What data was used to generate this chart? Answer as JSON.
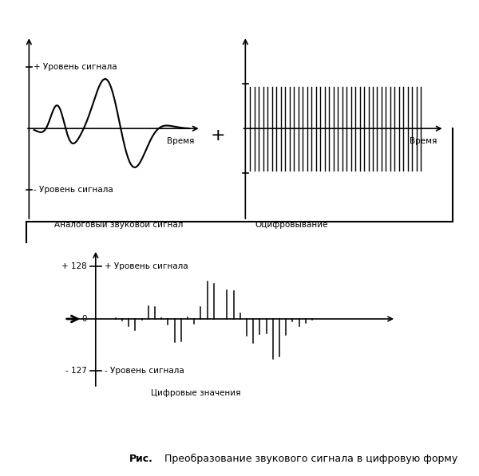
{
  "bg_color": "#ffffff",
  "top_left_label_pos": "+ Уровень сигнала",
  "top_left_label_neg": "- Уровень сигнала",
  "top_left_caption": "Аналоговый звуковой сигнал",
  "top_right_caption": "Оцифровывание",
  "top_time_label": "Время",
  "top_right_time_label": "Время",
  "bottom_plus128": "+ 128",
  "bottom_minus127": "- 127",
  "bottom_label_pos": "+ Уровень сигнала",
  "bottom_label_neg": "- Уровень сигнала",
  "bottom_caption": "Цифровые значения",
  "caption_bold": "Рис.",
  "caption_normal": "  Преобразование звукового сигнала в цифровую форму",
  "plus_sign": "+"
}
